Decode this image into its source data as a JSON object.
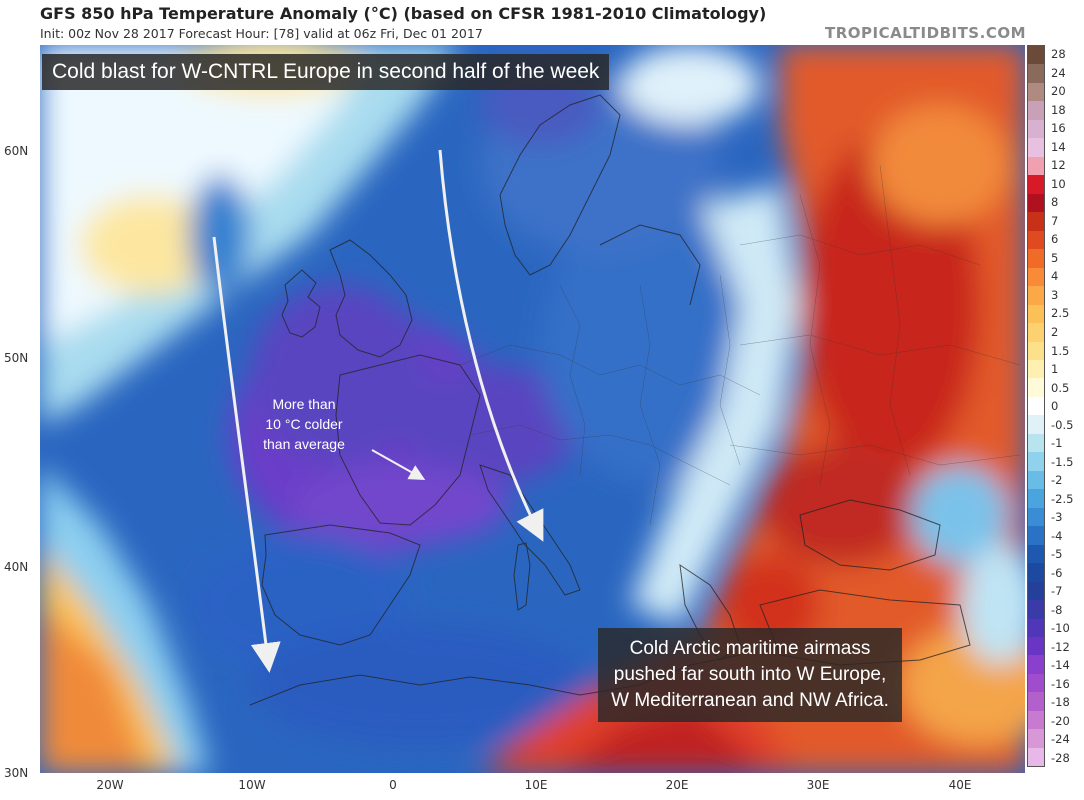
{
  "header": {
    "title": "GFS 850 hPa Temperature Anomaly (°C) (based on CFSR 1981-2010 Climatology)",
    "subtitle": "Init: 00z Nov 28 2017   Forecast Hour: [78]   valid at 06z Fri, Dec 01 2017",
    "brand": "TROPICALTIDBITS.COM"
  },
  "banner": "Cold blast for W-CNTRL Europe in second half of the week",
  "annotation": {
    "lines": [
      "More than",
      "10 °C colder",
      "than average"
    ]
  },
  "airmass_box": {
    "lines": [
      "Cold Arctic maritime airmass",
      "pushed far south into W Europe,",
      "W Mediterranean and NW Africa."
    ]
  },
  "axes": {
    "lat_labels": [
      "60N",
      "50N",
      "40N",
      "30N"
    ],
    "lon_labels": [
      "20W",
      "10W",
      "0",
      "10E",
      "20E",
      "30E",
      "40E"
    ]
  },
  "colorbar": {
    "labels": [
      "28",
      "24",
      "20",
      "18",
      "16",
      "14",
      "12",
      "10",
      "8",
      "7",
      "6",
      "5",
      "4",
      "3",
      "2.5",
      "2",
      "1.5",
      "1",
      "0.5",
      "0",
      "-0.5",
      "-1",
      "-1.5",
      "-2",
      "-2.5",
      "-3",
      "-4",
      "-5",
      "-6",
      "-7",
      "-8",
      "-10",
      "-12",
      "-14",
      "-16",
      "-18",
      "-20",
      "-24",
      "-28"
    ],
    "colors": [
      "#6b4a3a",
      "#8a6a5a",
      "#b08a80",
      "#c8a0b8",
      "#d8b0d0",
      "#e8c0e0",
      "#f0a0b0",
      "#d81a28",
      "#b01020",
      "#c83018",
      "#e04a20",
      "#f06a28",
      "#f88a38",
      "#fba848",
      "#fcc058",
      "#fdd070",
      "#fde08a",
      "#fef0b0",
      "#fffad8",
      "#ffffff",
      "#e0f2f8",
      "#b8e4f0",
      "#90d2ec",
      "#68bce6",
      "#4aa4de",
      "#3a8cd4",
      "#2a72c4",
      "#1e58b0",
      "#1c4aa0",
      "#24409a",
      "#3a3aa8",
      "#5036b8",
      "#6a34c4",
      "#8a40cc",
      "#a04ccc",
      "#b460cc",
      "#c87ad0",
      "#d898d8",
      "#e8b8e8"
    ]
  }
}
